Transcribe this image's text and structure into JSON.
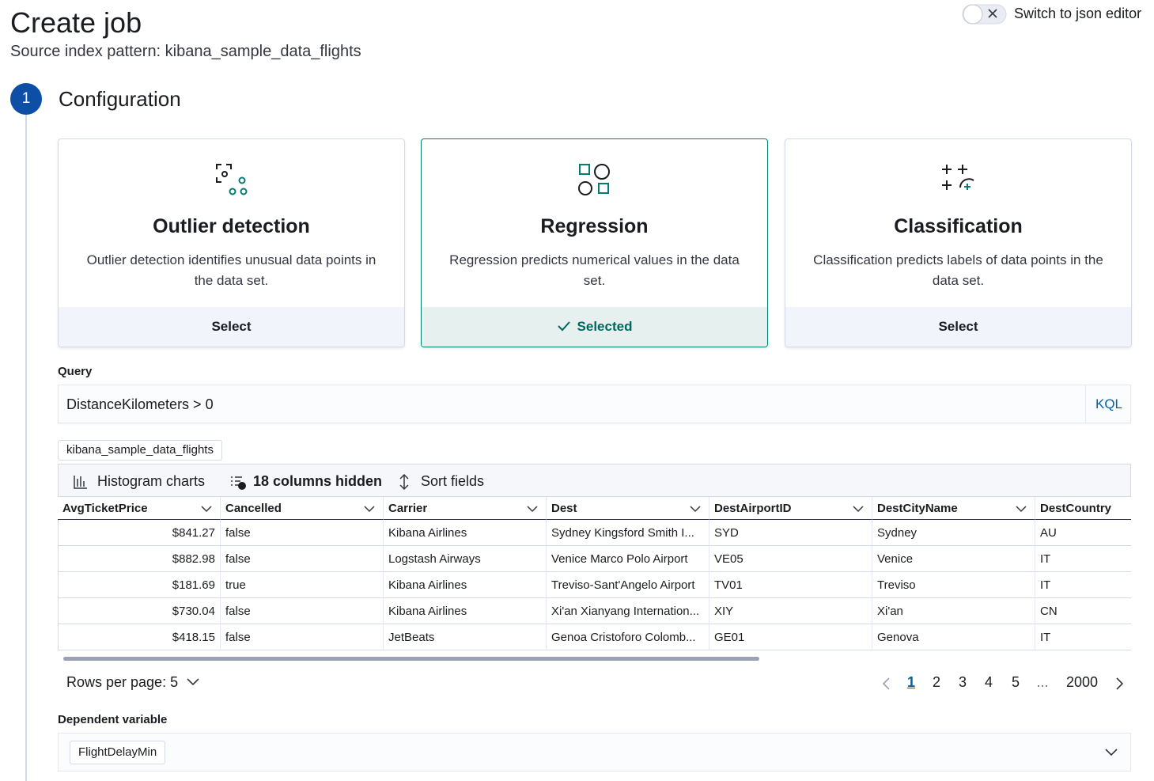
{
  "header": {
    "title": "Create job",
    "subtitle": "Source index pattern: kibana_sample_data_flights",
    "toggle_label": "Switch to json editor"
  },
  "step": {
    "number": "1",
    "title": "Configuration"
  },
  "job_types": [
    {
      "title": "Outlier detection",
      "description": "Outlier detection identifies unusual data points in the data set.",
      "button": "Select"
    },
    {
      "title": "Regression",
      "description": "Regression predicts numerical values in the data set.",
      "button": "Selected"
    },
    {
      "title": "Classification",
      "description": "Classification predicts labels of data points in the data set.",
      "button": "Select"
    }
  ],
  "query": {
    "label": "Query",
    "value": "DistanceKilometers > 0",
    "language": "KQL"
  },
  "index_badge": "kibana_sample_data_flights",
  "toolbar": [
    "Histogram charts",
    "18 columns hidden",
    "Sort fields"
  ],
  "table": {
    "columns": [
      "AvgTicketPrice",
      "Cancelled",
      "Carrier",
      "Dest",
      "DestAirportID",
      "DestCityName",
      "DestCountry"
    ],
    "rows": [
      [
        "$841.27",
        "false",
        "Kibana Airlines",
        "Sydney Kingsford Smith I...",
        "SYD",
        "Sydney",
        "AU"
      ],
      [
        "$882.98",
        "false",
        "Logstash Airways",
        "Venice Marco Polo Airport",
        "VE05",
        "Venice",
        "IT"
      ],
      [
        "$181.69",
        "true",
        "Kibana Airlines",
        "Treviso-Sant'Angelo Airport",
        "TV01",
        "Treviso",
        "IT"
      ],
      [
        "$730.04",
        "false",
        "Kibana Airlines",
        "Xi'an Xianyang Internation...",
        "XIY",
        "Xi'an",
        "CN"
      ],
      [
        "$418.15",
        "false",
        "JetBeats",
        "Genoa Cristoforo Colomb...",
        "GE01",
        "Genova",
        "IT"
      ]
    ]
  },
  "pagination": {
    "rows_per_page": "Rows per page: 5",
    "pages": [
      "1",
      "2",
      "3",
      "4",
      "5",
      "...",
      "2000"
    ]
  },
  "dependent_variable": {
    "label": "Dependent variable",
    "value": "FlightDelayMin"
  }
}
